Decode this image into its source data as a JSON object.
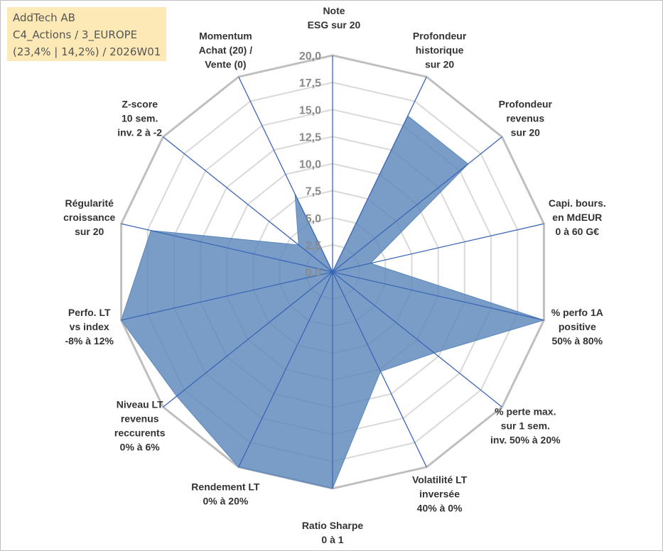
{
  "header": {
    "line1": "AddTech AB",
    "line2": "C4_Actions / 3_EUROPE",
    "line3": "(23,4% | 14,2%) / 2026W01"
  },
  "chart_data": {
    "type": "radar",
    "range": [
      0,
      20
    ],
    "ticks": [
      "0,0",
      "2,5",
      "5,0",
      "7,5",
      "10,0",
      "12,5",
      "15,0",
      "17,5",
      "20,0"
    ],
    "grid": true,
    "colors": {
      "fill": "#5b87bb",
      "axis": "#3a66b5",
      "grid_outer": "#bfbfbf",
      "grid_inner": "#d9d9d9"
    },
    "axes": [
      {
        "label": [
          "Note",
          "ESG sur 20"
        ],
        "value": 0
      },
      {
        "label": [
          "Profondeur",
          "historique",
          "sur 20"
        ],
        "value": 16
      },
      {
        "label": [
          "Profondeur",
          "revenus",
          "sur 20"
        ],
        "value": 16
      },
      {
        "label": [
          "Capi. bours.",
          "en MdEUR",
          "0 à 60 G€"
        ],
        "value": 3.6
      },
      {
        "label": [
          "% perfo 1A",
          "positive",
          "50% à 80%"
        ],
        "value": 20
      },
      {
        "label": [
          "% perte max.",
          "sur 1 sem.",
          "inv. 50% à 20%"
        ],
        "value": 12
      },
      {
        "label": [
          "Volatilité LT",
          "inversée",
          "40% à 0%"
        ],
        "value": 10.2
      },
      {
        "label": [
          "Ratio Sharpe",
          "0 à 1"
        ],
        "value": 20
      },
      {
        "label": [
          "Rendement LT",
          "0% à 20%"
        ],
        "value": 20
      },
      {
        "label": [
          "Niveau LT",
          "revenus",
          "reccurents",
          "0% à 6%"
        ],
        "value": 18.4
      },
      {
        "label": [
          "Perfo. LT",
          "vs index",
          "-8% à 12%"
        ],
        "value": 20
      },
      {
        "label": [
          "Régularité",
          "croissance",
          "sur 20"
        ],
        "value": 17.2
      },
      {
        "label": [
          "Z-score",
          "10 sem.",
          "inv. 2 à -2"
        ],
        "value": 4
      },
      {
        "label": [
          "Momentum",
          "Achat (20) /",
          "Vente (0)"
        ],
        "value": 8
      }
    ]
  }
}
